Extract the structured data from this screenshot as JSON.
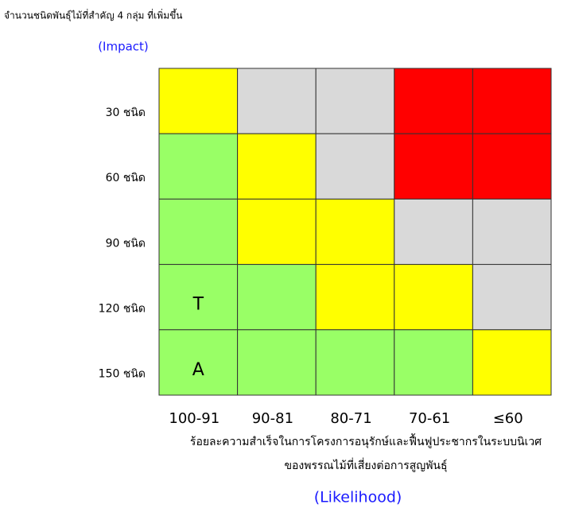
{
  "title": "จำนวนชนิดพันธุ์ไม้ที่สำคัญ 4 กลุ่ม ที่เพิ่มขึ้น",
  "y_axis_label": "(Impact)",
  "rows": [
    "30 ชนิด",
    "60 ชนิด",
    "90 ชนิด",
    "120 ชนิด",
    "150 ชนิด"
  ],
  "columns": [
    "100-91",
    "90-81",
    "80-71",
    "70-61",
    "≤60"
  ],
  "x_axis_label": [
    "ร้อยละความสำเร็จในการโครงการอนุรักษ์และฟื้นฟูประชากรในระบบนิเวศ",
    "ของพรรณไม้ที่เสี่ยงต่อการสูญพันธุ์"
  ],
  "x_axis_sublabel": "(Likelihood)",
  "cells": [
    [
      {
        "color": "#ffff00"
      },
      {
        "color": "#d9d9d9"
      },
      {
        "color": "#d9d9d9"
      },
      {
        "color": "#ff0000"
      },
      {
        "color": "#ff0000"
      }
    ],
    [
      {
        "color": "#99ff66"
      },
      {
        "color": "#ffff00"
      },
      {
        "color": "#d9d9d9"
      },
      {
        "color": "#ff0000"
      },
      {
        "color": "#ff0000"
      }
    ],
    [
      {
        "color": "#99ff66"
      },
      {
        "color": "#ffff00"
      },
      {
        "color": "#ffff00"
      },
      {
        "color": "#d9d9d9"
      },
      {
        "color": "#d9d9d9"
      }
    ],
    [
      {
        "color": "#99ff66",
        "text": "T"
      },
      {
        "color": "#99ff66"
      },
      {
        "color": "#ffff00"
      },
      {
        "color": "#ffff00"
      },
      {
        "color": "#d9d9d9"
      }
    ],
    [
      {
        "color": "#99ff66",
        "text": "A"
      },
      {
        "color": "#99ff66"
      },
      {
        "color": "#99ff66"
      },
      {
        "color": "#99ff66"
      },
      {
        "color": "#ffff00"
      }
    ]
  ]
}
